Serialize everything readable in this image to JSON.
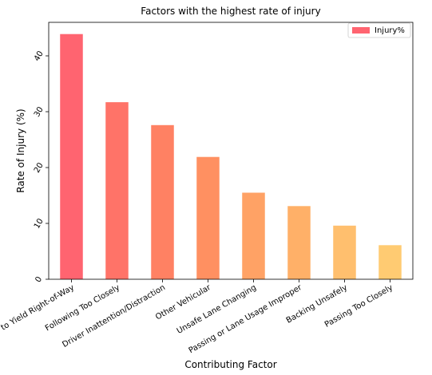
{
  "chart_data": {
    "type": "bar",
    "title": "Factors with the highest rate of injury",
    "xlabel": "Contributing Factor",
    "ylabel": "Rate of Injury (%)",
    "categories": [
      "Failure to Yield Right-of-Way",
      "Following Too Closely",
      "Driver Inattention/Distraction",
      "Other Vehicular",
      "Unsafe Lane Changing",
      "Passing or Lane Usage Improper",
      "Backing Unsafely",
      "Passing Too Closely"
    ],
    "series": [
      {
        "name": "Injury%",
        "values": [
          43.9,
          31.7,
          27.6,
          21.9,
          15.5,
          13.1,
          9.6,
          6.1
        ]
      }
    ],
    "bar_colors": [
      "#ff6470",
      "#ff7368",
      "#ff8163",
      "#ff9061",
      "#ffa265",
      "#ffb068",
      "#ffbf6e",
      "#ffcb72"
    ],
    "legend_color": "#ff6470",
    "ylim": [
      0,
      46
    ],
    "yticks": [
      "0",
      "10",
      "20",
      "30",
      "40"
    ],
    "ytick_values": [
      0,
      10,
      20,
      30,
      40
    ],
    "grid": false,
    "legend_position": "top-right"
  }
}
